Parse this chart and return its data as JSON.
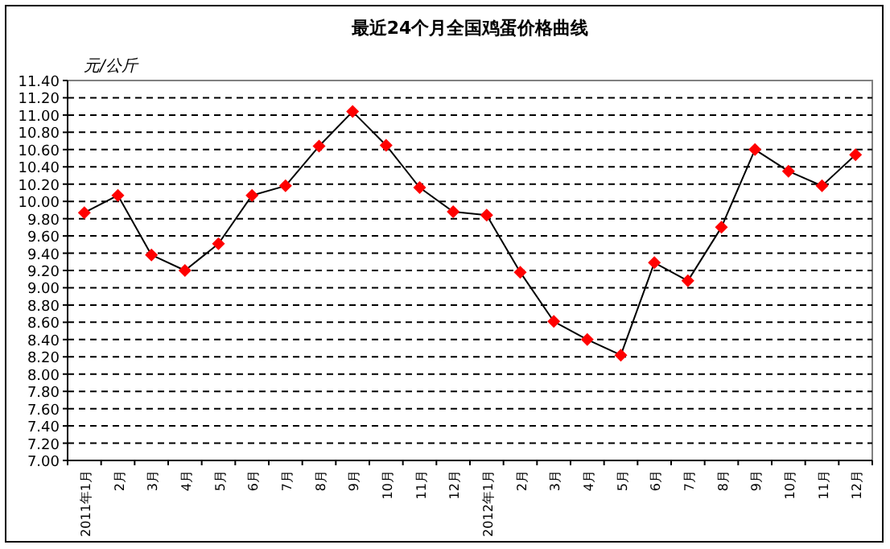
{
  "chart_data": {
    "type": "line",
    "title": "最近24个月全国鸡蛋价格曲线",
    "ylabel": "元/公斤",
    "categories": [
      "2011年1月",
      "2月",
      "3月",
      "4月",
      "5月",
      "6月",
      "7月",
      "8月",
      "9月",
      "10月",
      "11月",
      "12月",
      "2012年1月",
      "2月",
      "3月",
      "4月",
      "5月",
      "6月",
      "7月",
      "8月",
      "9月",
      "10月",
      "11月",
      "12月"
    ],
    "series": [
      {
        "color": "#ff0000",
        "values": [
          9.87,
          10.07,
          9.38,
          9.2,
          9.51,
          10.07,
          10.18,
          10.64,
          11.04,
          10.65,
          10.16,
          9.88,
          9.84,
          9.18,
          8.61,
          8.4,
          8.22,
          9.29,
          9.08,
          9.7,
          10.6,
          10.35,
          10.18,
          10.54
        ]
      }
    ],
    "ylim": [
      7,
      11.4
    ],
    "yticks": [
      {
        "value": 7,
        "label": "7.00"
      },
      {
        "value": 7.2,
        "label": "7.20"
      },
      {
        "value": 7.4,
        "label": "7.40"
      },
      {
        "value": 7.6,
        "label": "7.60"
      },
      {
        "value": 7.8,
        "label": "7.80"
      },
      {
        "value": 8,
        "label": "8.00"
      },
      {
        "value": 8.2,
        "label": "8.20"
      },
      {
        "value": 8.4,
        "label": "8.40"
      },
      {
        "value": 8.6,
        "label": "8.60"
      },
      {
        "value": 8.8,
        "label": "8.80"
      },
      {
        "value": 9,
        "label": "9.00"
      },
      {
        "value": 9.2,
        "label": "9.20"
      },
      {
        "value": 9.4,
        "label": "9.40"
      },
      {
        "value": 9.6,
        "label": "9.60"
      },
      {
        "value": 9.8,
        "label": "9.80"
      },
      {
        "value": 10,
        "label": "10.00"
      },
      {
        "value": 10.2,
        "label": "10.20"
      },
      {
        "value": 10.4,
        "label": "10.40"
      },
      {
        "value": 10.6,
        "label": "10.60"
      },
      {
        "value": 10.8,
        "label": "10.80"
      },
      {
        "value": 11,
        "label": "11.00"
      },
      {
        "value": 11.2,
        "label": "11.20"
      },
      {
        "value": 11.4,
        "label": "11.40"
      }
    ],
    "grid": "y",
    "marker": "diamond",
    "line_style": "solid"
  }
}
